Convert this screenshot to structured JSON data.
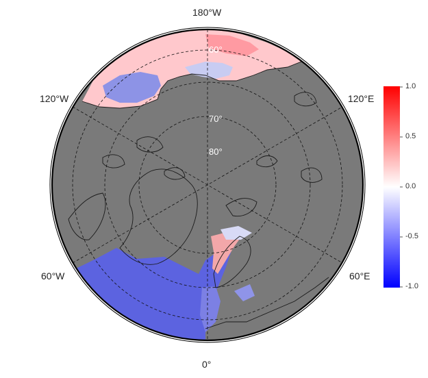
{
  "map": {
    "projection": "polar-stereographic-north",
    "land_color": "#7a7a7a",
    "graticule_style": "dashed",
    "longitude_labels": {
      "top": "180°W",
      "bottom": "0°",
      "upper_left": "120°W",
      "upper_right": "120°E",
      "lower_left": "60°W",
      "lower_right": "60°E"
    },
    "latitude_labels": [
      "60°",
      "70°",
      "80°"
    ]
  },
  "colorbar": {
    "colors": {
      "min": "#0000ff",
      "mid": "#ffffff",
      "max": "#ff0000"
    },
    "range": [
      -1.0,
      1.0
    ],
    "ticks": [
      "1.0",
      "0.5",
      "0.0",
      "-0.5",
      "-1.0"
    ]
  }
}
